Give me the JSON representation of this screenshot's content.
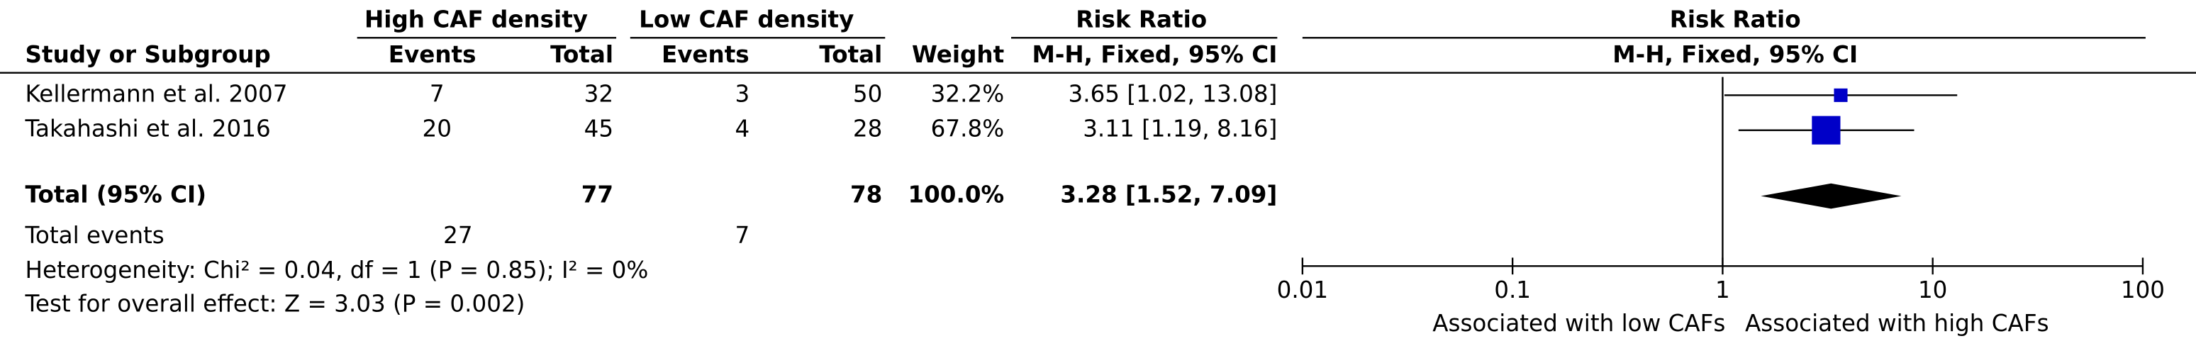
{
  "chart_data": {
    "type": "forest",
    "headers": {
      "group1": "High CAF density",
      "group2": "Low CAF density",
      "effect": "Risk Ratio",
      "study": "Study or Subgroup",
      "events1": "Events",
      "total1": "Total",
      "events2": "Events",
      "total2": "Total",
      "weight": "Weight",
      "method": "M-H, Fixed, 95% CI",
      "plot_title": "Risk Ratio",
      "plot_method": "M-H, Fixed, 95% CI"
    },
    "studies": [
      {
        "name": "Kellermann et al. 2007",
        "events1": 7,
        "total1": 32,
        "events2": 3,
        "total2": 50,
        "weight": 32.2,
        "weight_label": "32.2%",
        "rr": 3.65,
        "ci": [
          1.02,
          13.08
        ],
        "rr_label": "3.65 [1.02, 13.08]"
      },
      {
        "name": "Takahashi et al. 2016",
        "events1": 20,
        "total1": 45,
        "events2": 4,
        "total2": 28,
        "weight": 67.8,
        "weight_label": "67.8%",
        "rr": 3.11,
        "ci": [
          1.19,
          8.16
        ],
        "rr_label": "3.11 [1.19, 8.16]"
      }
    ],
    "total": {
      "name": "Total (95% CI)",
      "total1": 77,
      "total2": 78,
      "weight": 100,
      "weight_label": "100.0%",
      "rr": 3.28,
      "ci": [
        1.52,
        7.09
      ],
      "rr_label": "3.28 [1.52, 7.09]"
    },
    "total_events": {
      "label": "Total events",
      "events1": 27,
      "events2": 7
    },
    "heterogeneity": "Heterogeneity: Chi² = 0.04, df = 1 (P = 0.85); I² = 0%",
    "overall_effect": "Test for overall effect: Z = 3.03 (P = 0.002)",
    "xlim": [
      0.01,
      100
    ],
    "xticks": [
      0.01,
      0.1,
      1,
      10,
      100
    ],
    "log_scale": true,
    "null_value": 1,
    "xlabel_left": "Associated with low CAFs",
    "xlabel_right": "Associated with high CAFs",
    "square_color": "#0000c8",
    "diamond_color": "#000000"
  }
}
